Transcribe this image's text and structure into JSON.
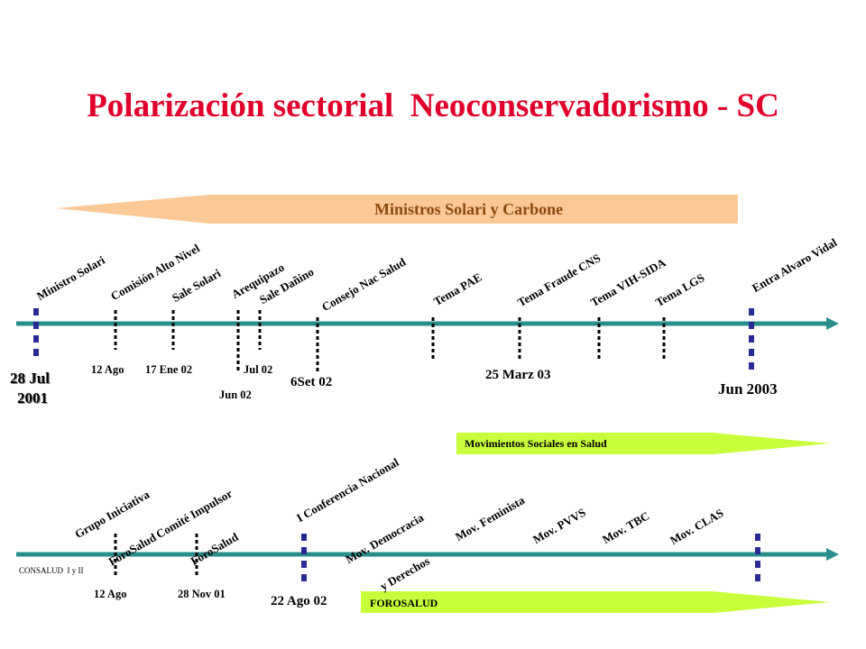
{
  "title": "Polarización sectorial  Neoconservadorismo - SC",
  "colors": {
    "title": "#e0002a",
    "timeline": "#2a8f8c",
    "marker": "#2a2a96",
    "ministros_band": "#fcc896",
    "ministros_text": "#8a4a0e",
    "green_band": "#c8ff3a"
  },
  "top_timeline": {
    "band_label": "Ministros Solari y Carbone",
    "events": [
      "Ministro Solari",
      "Comisión Alto Nivel",
      "Sale Solari",
      "Arequipazo",
      "Sale Dañino",
      "Consejo Nac Salud",
      "Tema PAE",
      "Tema Fraude CNS",
      "Tema VIH-SIDA",
      "Tema LGS",
      "Entra Alvaro Vidal"
    ],
    "dates": {
      "start_line1": "28 Jul",
      "start_line2": "2001",
      "d_12ago": "12 Ago",
      "d_17ene02": "17 Ene 02",
      "d_jul02": "Jul 02",
      "d_jun02": "Jun 02",
      "d_6set02": "6Set 02",
      "d_25marz03": "25 Marz 03",
      "d_jun2003": "Jun 2003"
    }
  },
  "bottom_timeline": {
    "band_label": "Movimientos Sociales en Salud",
    "forosalud_label": "FOROSALUD",
    "consalud_label": "CONSALUD  I y II",
    "events": {
      "grupo_1": "Grupo Iniciativa",
      "grupo_2": "ForoSalud",
      "comite_1": "Comité Impulsor",
      "comite_2": "ForoSalud",
      "conferencia": "I Conferencia Nacional",
      "democracia_1": "Mov. Democracia",
      "democracia_2": "y Derechos",
      "feminista": "Mov. Feminista",
      "pvvs": "Mov. PVVS",
      "tbc": "Mov. TBC",
      "clas": "Mov. CLAS"
    },
    "dates": {
      "d_12ago": "12 Ago",
      "d_28nov01": "28 Nov 01",
      "d_22ago02": "22 Ago 02"
    }
  }
}
